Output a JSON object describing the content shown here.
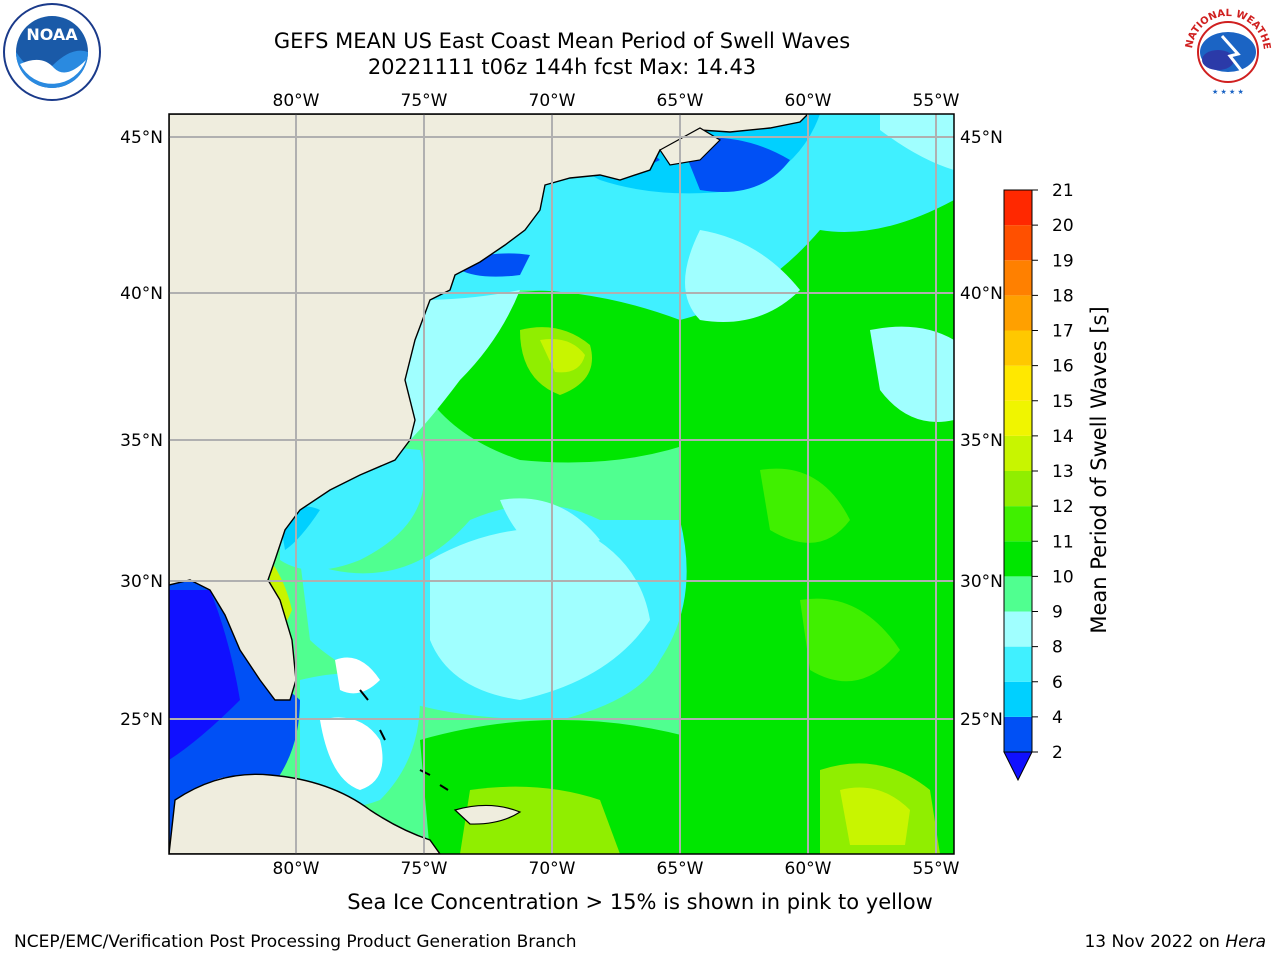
{
  "title": {
    "line1": "GEFS MEAN US East Coast Mean Period of Swell Waves",
    "line2": "20221111 t06z 144h fcst   Max: 14.43"
  },
  "map": {
    "lon_labels": [
      "80°W",
      "75°W",
      "70°W",
      "65°W",
      "60°W",
      "55°W"
    ],
    "lat_labels": [
      "45°N",
      "40°N",
      "35°N",
      "30°N",
      "25°N"
    ],
    "land_color": "#efedde",
    "grid_color": "#b0b0b0",
    "ice_color": "#ffffff"
  },
  "colorbar": {
    "label": "Mean Period of Swell Waves [s]",
    "ticks": [
      "2",
      "4",
      "6",
      "8",
      "9",
      "10",
      "11",
      "12",
      "13",
      "14",
      "15",
      "16",
      "17",
      "18",
      "19",
      "20",
      "21"
    ],
    "colors": [
      "#0050f5",
      "#00d0ff",
      "#40f0ff",
      "#a0ffff",
      "#50ff90",
      "#00e600",
      "#40f000",
      "#90ee00",
      "#c8f500",
      "#f0f500",
      "#ffe800",
      "#ffc800",
      "#ffa000",
      "#ff8000",
      "#ff5000",
      "#ff2800"
    ],
    "under_color": "#1010ff"
  },
  "notes": {
    "sea_ice": "Sea Ice Concentration > 15% is shown in pink to yellow",
    "producer": "NCEP/EMC/Verification Post Processing Product Generation Branch",
    "date": "13 Nov 2022 on ",
    "host": "Hera"
  },
  "logos": {
    "noaa_text": "NOAA",
    "nws_text": "NATIONAL WEATHER SERVICE"
  }
}
